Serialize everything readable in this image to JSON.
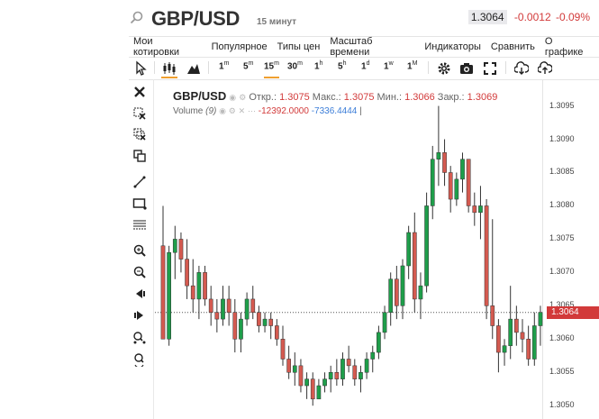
{
  "header": {
    "symbol": "GBP/USD",
    "timeframe": "15 минут",
    "last_price": "1.3064",
    "change": "-0.0012",
    "change_pct": "-0.09%"
  },
  "menu": [
    "Мои котировки",
    "Популярное",
    "Типы цен",
    "Масштаб времени",
    "Индикаторы",
    "Сравнить",
    "О графике"
  ],
  "intervals": [
    {
      "n": "1",
      "u": "m"
    },
    {
      "n": "5",
      "u": "m"
    },
    {
      "n": "15",
      "u": "m"
    },
    {
      "n": "30",
      "u": "m"
    },
    {
      "n": "1",
      "u": "h"
    },
    {
      "n": "5",
      "u": "h"
    },
    {
      "n": "1",
      "u": "d"
    },
    {
      "n": "1",
      "u": "w"
    },
    {
      "n": "1",
      "u": "M"
    }
  ],
  "legend": {
    "name": "GBP/USD",
    "open_label": "Откр.:",
    "open": "1.3075",
    "high_label": "Макс.:",
    "high": "1.3075",
    "low_label": "Мин.:",
    "low": "1.3066",
    "close_label": "Закр.:",
    "close": "1.3069",
    "volume_label": "Volume",
    "volume_param": "(9)",
    "volume_val": "-12392.0000",
    "volume_ma": "-7336.4444",
    "volume_end": "|"
  },
  "colors": {
    "up": "#1e9e4a",
    "down": "#d45a50",
    "accent": "#f0a030",
    "neg": "#d23a3a"
  },
  "chart_data": {
    "type": "candlestick",
    "yticks": [
      "1.3095",
      "1.3090",
      "1.3085",
      "1.3080",
      "1.3075",
      "1.3070",
      "1.3065",
      "1.3060",
      "1.3055",
      "1.3050"
    ],
    "ylim": [
      1.3048,
      1.3099
    ],
    "current_price": "1.3064",
    "candles": [
      [
        1.3074,
        1.308,
        1.306,
        1.306
      ],
      [
        1.306,
        1.3074,
        1.3059,
        1.3073
      ],
      [
        1.3073,
        1.3077,
        1.3069,
        1.3075
      ],
      [
        1.3075,
        1.3076,
        1.307,
        1.3072
      ],
      [
        1.3072,
        1.3075,
        1.3066,
        1.3068
      ],
      [
        1.3068,
        1.3072,
        1.3064,
        1.3066
      ],
      [
        1.3066,
        1.3071,
        1.3063,
        1.307
      ],
      [
        1.307,
        1.3071,
        1.3065,
        1.3066
      ],
      [
        1.3066,
        1.3068,
        1.3062,
        1.3064
      ],
      [
        1.3064,
        1.3066,
        1.3061,
        1.3063
      ],
      [
        1.3063,
        1.3068,
        1.3062,
        1.3066
      ],
      [
        1.3066,
        1.3068,
        1.3062,
        1.3064
      ],
      [
        1.3064,
        1.3066,
        1.3058,
        1.306
      ],
      [
        1.306,
        1.3064,
        1.3058,
        1.3063
      ],
      [
        1.3063,
        1.3067,
        1.3062,
        1.3066
      ],
      [
        1.3066,
        1.3068,
        1.3063,
        1.3064
      ],
      [
        1.3064,
        1.3065,
        1.3061,
        1.3062
      ],
      [
        1.3062,
        1.3064,
        1.3061,
        1.3063
      ],
      [
        1.3063,
        1.3064,
        1.306,
        1.3062
      ],
      [
        1.3062,
        1.3063,
        1.3059,
        1.306
      ],
      [
        1.306,
        1.3062,
        1.3056,
        1.3057
      ],
      [
        1.3057,
        1.3059,
        1.3054,
        1.3055
      ],
      [
        1.3055,
        1.3058,
        1.3053,
        1.3056
      ],
      [
        1.3056,
        1.3057,
        1.3052,
        1.3053
      ],
      [
        1.3053,
        1.3055,
        1.3051,
        1.3054
      ],
      [
        1.3054,
        1.3055,
        1.305,
        1.3051
      ],
      [
        1.3051,
        1.3054,
        1.3051,
        1.3053
      ],
      [
        1.3053,
        1.3055,
        1.3052,
        1.3054
      ],
      [
        1.3054,
        1.3056,
        1.3052,
        1.3055
      ],
      [
        1.3055,
        1.3057,
        1.3053,
        1.3054
      ],
      [
        1.3054,
        1.3058,
        1.3053,
        1.3057
      ],
      [
        1.3057,
        1.3059,
        1.3055,
        1.3056
      ],
      [
        1.3056,
        1.3057,
        1.3053,
        1.3054
      ],
      [
        1.3054,
        1.3056,
        1.3052,
        1.3055
      ],
      [
        1.3055,
        1.3058,
        1.3054,
        1.3057
      ],
      [
        1.3057,
        1.3059,
        1.3055,
        1.3058
      ],
      [
        1.3058,
        1.3062,
        1.3057,
        1.3061
      ],
      [
        1.3061,
        1.3065,
        1.306,
        1.3064
      ],
      [
        1.3064,
        1.307,
        1.3062,
        1.3069
      ],
      [
        1.3069,
        1.3071,
        1.3063,
        1.3065
      ],
      [
        1.3065,
        1.3072,
        1.3063,
        1.3071
      ],
      [
        1.3071,
        1.3077,
        1.3069,
        1.3076
      ],
      [
        1.3076,
        1.3079,
        1.3064,
        1.3066
      ],
      [
        1.3066,
        1.307,
        1.3063,
        1.3068
      ],
      [
        1.3068,
        1.3082,
        1.3067,
        1.308
      ],
      [
        1.308,
        1.3089,
        1.3078,
        1.3087
      ],
      [
        1.3087,
        1.3095,
        1.3083,
        1.3088
      ],
      [
        1.3088,
        1.309,
        1.3083,
        1.3085
      ],
      [
        1.3085,
        1.3086,
        1.3079,
        1.3081
      ],
      [
        1.3081,
        1.3085,
        1.308,
        1.3084
      ],
      [
        1.3084,
        1.3088,
        1.3082,
        1.3087
      ],
      [
        1.3087,
        1.3087,
        1.3079,
        1.308
      ],
      [
        1.308,
        1.3082,
        1.3077,
        1.3079
      ],
      [
        1.3079,
        1.3083,
        1.3075,
        1.308
      ],
      [
        1.308,
        1.3081,
        1.3063,
        1.3065
      ],
      [
        1.3065,
        1.3078,
        1.306,
        1.3062
      ],
      [
        1.3062,
        1.3063,
        1.3055,
        1.3058
      ],
      [
        1.3058,
        1.306,
        1.3056,
        1.3059
      ],
      [
        1.3059,
        1.3068,
        1.3057,
        1.3063
      ],
      [
        1.3063,
        1.3065,
        1.3059,
        1.3061
      ],
      [
        1.3061,
        1.3063,
        1.3058,
        1.306
      ],
      [
        1.306,
        1.3062,
        1.3056,
        1.3057
      ],
      [
        1.3057,
        1.3064,
        1.3056,
        1.3062
      ],
      [
        1.3062,
        1.3065,
        1.3059,
        1.3064
      ]
    ]
  }
}
